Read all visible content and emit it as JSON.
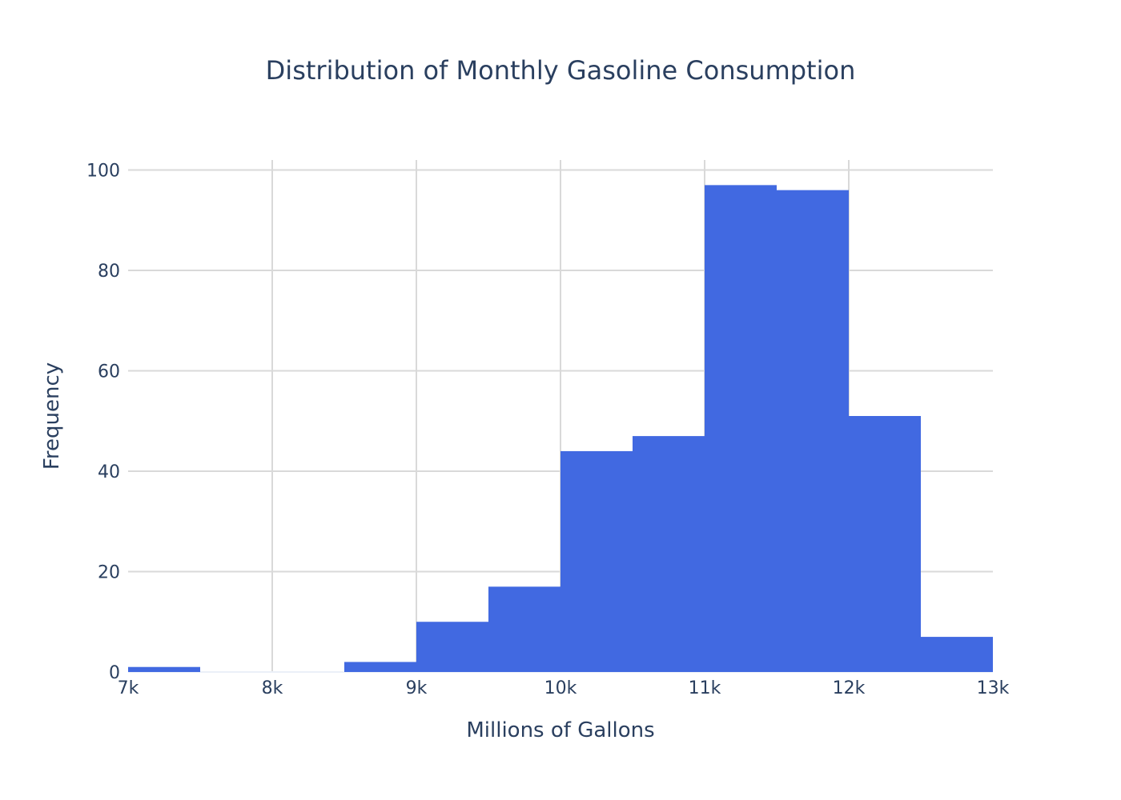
{
  "chart_data": {
    "type": "bar",
    "title": "Distribution of Monthly Gasoline Consumption",
    "xlabel": "Millions of Gallons",
    "ylabel": "Frequency",
    "bin_width": 500,
    "bins": [
      {
        "start": 7000,
        "end": 7500,
        "count": 1
      },
      {
        "start": 7500,
        "end": 8000,
        "count": 0
      },
      {
        "start": 8000,
        "end": 8500,
        "count": 0
      },
      {
        "start": 8500,
        "end": 9000,
        "count": 2
      },
      {
        "start": 9000,
        "end": 9500,
        "count": 10
      },
      {
        "start": 9500,
        "end": 10000,
        "count": 17
      },
      {
        "start": 10000,
        "end": 10500,
        "count": 44
      },
      {
        "start": 10500,
        "end": 11000,
        "count": 47
      },
      {
        "start": 11000,
        "end": 11500,
        "count": 97
      },
      {
        "start": 11500,
        "end": 12000,
        "count": 96
      },
      {
        "start": 12000,
        "end": 12500,
        "count": 51
      },
      {
        "start": 12500,
        "end": 13000,
        "count": 7
      }
    ],
    "xlim": [
      7000,
      13000
    ],
    "ylim": [
      0,
      102
    ],
    "x_ticks": [
      {
        "value": 7000,
        "label": "7k"
      },
      {
        "value": 8000,
        "label": "8k"
      },
      {
        "value": 9000,
        "label": "9k"
      },
      {
        "value": 10000,
        "label": "10k"
      },
      {
        "value": 11000,
        "label": "11k"
      },
      {
        "value": 12000,
        "label": "12k"
      },
      {
        "value": 13000,
        "label": "13k"
      }
    ],
    "y_ticks": [
      {
        "value": 0,
        "label": "0"
      },
      {
        "value": 20,
        "label": "20"
      },
      {
        "value": 40,
        "label": "40"
      },
      {
        "value": 60,
        "label": "60"
      },
      {
        "value": 80,
        "label": "80"
      },
      {
        "value": 100,
        "label": "100"
      }
    ],
    "grid": true,
    "bar_color": "#4169e1",
    "grid_color": "#d9d9d9",
    "text_color": "#2a3f5f"
  }
}
